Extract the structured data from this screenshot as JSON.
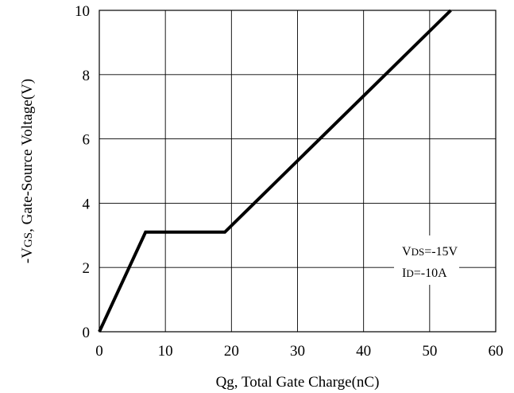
{
  "chart_data": {
    "type": "line",
    "xlabel": "Qg, Total Gate Charge(nC)",
    "ylabel_prefix": "-V",
    "ylabel_sub": "GS",
    "ylabel_rest": ", Gate-Source Voltage(V)",
    "xlim": [
      0,
      60
    ],
    "ylim": [
      0,
      10
    ],
    "x_ticks": [
      "0",
      "10",
      "20",
      "30",
      "40",
      "50",
      "60"
    ],
    "y_ticks": [
      "0",
      "2",
      "4",
      "6",
      "8",
      "10"
    ],
    "grid": true,
    "series": [
      {
        "x": [
          0,
          7,
          19,
          53.2
        ],
        "y": [
          0,
          3.1,
          3.1,
          10
        ],
        "color": "#000000"
      }
    ],
    "annotations": [
      {
        "main": "V",
        "sub": "DS",
        "rest": "=-15V"
      },
      {
        "main": "I",
        "sub": "D",
        "rest": "=-10A"
      }
    ]
  }
}
